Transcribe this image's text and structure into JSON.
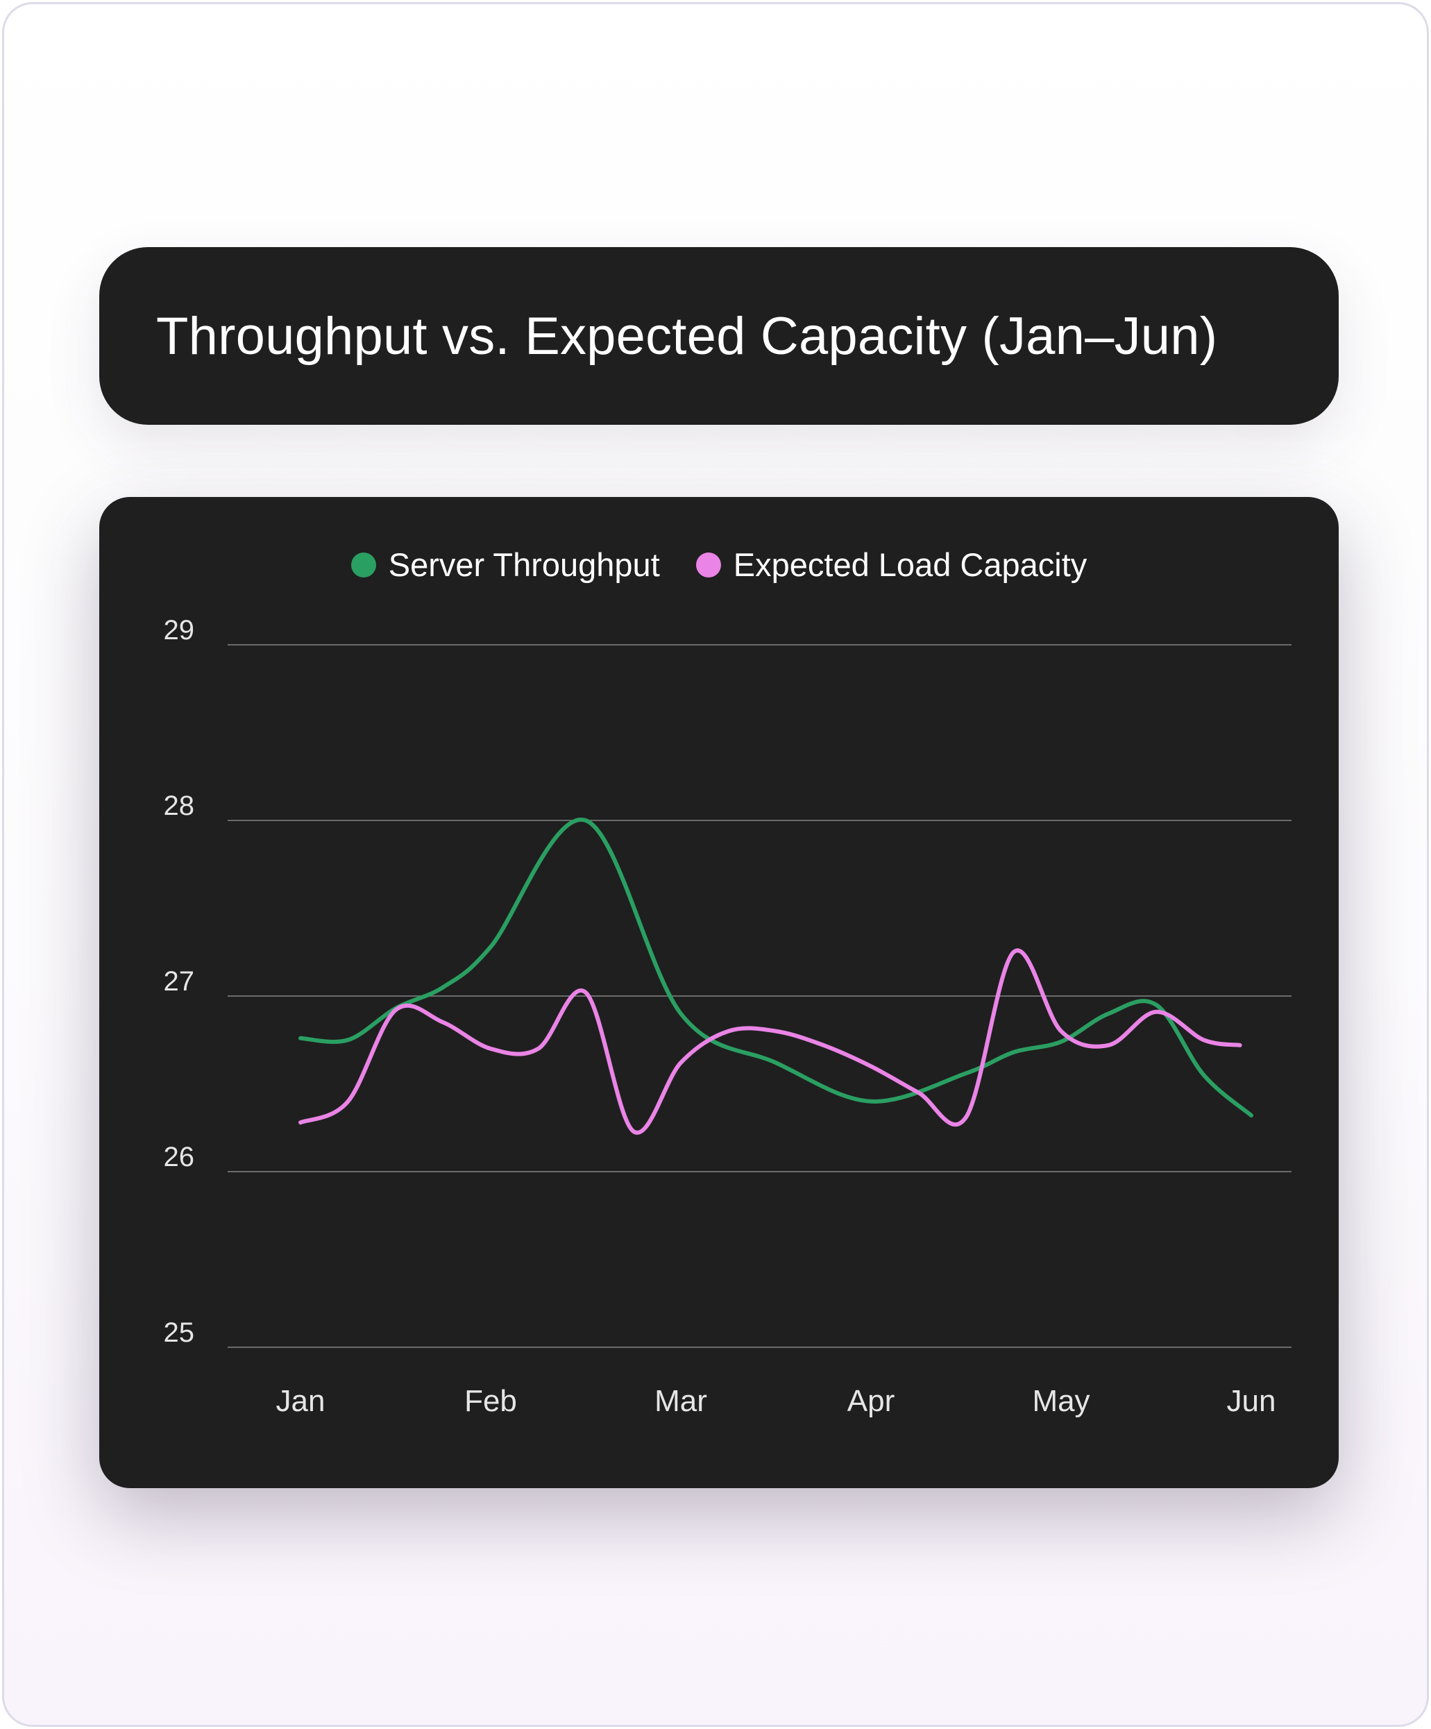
{
  "title": "Throughput vs. Expected Capacity (Jan–Jun)",
  "chart_data": {
    "type": "line",
    "title": "Throughput vs. Expected Capacity (Jan–Jun)",
    "xlabel": "",
    "ylabel": "",
    "categories": [
      "Jan",
      "Feb",
      "Mar",
      "Apr",
      "May",
      "Jun"
    ],
    "yticks": [
      "25",
      "26",
      "27",
      "28",
      "29"
    ],
    "ylim": [
      25,
      29
    ],
    "grid": true,
    "legend_position": "top-center",
    "series": [
      {
        "name": "Server Throughput",
        "color": "#2a9f62",
        "x": [
          0.0,
          0.25,
          0.5,
          0.75,
          1.0,
          1.5,
          2.0,
          2.5,
          3.0,
          3.5,
          3.75,
          4.0,
          4.25,
          4.5,
          4.75,
          5.0
        ],
        "values": [
          26.76,
          26.75,
          26.93,
          27.05,
          27.28,
          28.0,
          26.9,
          26.62,
          26.4,
          26.56,
          26.68,
          26.74,
          26.9,
          26.95,
          26.55,
          26.32
        ]
      },
      {
        "name": "Expected Load Capacity",
        "color": "#ea84e6",
        "x": [
          0.0,
          0.25,
          0.5,
          0.75,
          1.0,
          1.25,
          1.5,
          1.75,
          2.0,
          2.25,
          2.5,
          2.75,
          3.0,
          3.25,
          3.5,
          3.75,
          4.0,
          4.25,
          4.5,
          4.75,
          4.94
        ],
        "values": [
          26.28,
          26.4,
          26.92,
          26.85,
          26.7,
          26.7,
          27.02,
          26.23,
          26.62,
          26.8,
          26.8,
          26.72,
          26.6,
          26.45,
          26.31,
          27.25,
          26.8,
          26.72,
          26.91,
          26.75,
          26.72
        ]
      }
    ]
  }
}
